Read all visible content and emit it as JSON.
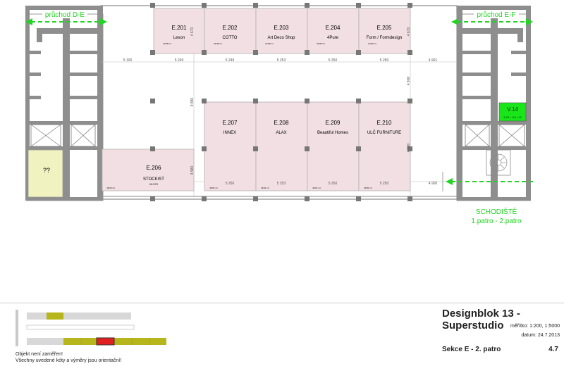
{
  "passages": {
    "left": "průchod D-E",
    "right": "průchod E-F"
  },
  "units_top": [
    {
      "code": "E.201",
      "name": "Lexon",
      "area": "23,98 m²"
    },
    {
      "code": "E.202",
      "name": "COTTO",
      "area": "23,98 m²"
    },
    {
      "code": "E.203",
      "name": "Art Deco Shop",
      "area": "23,98 m²"
    },
    {
      "code": "E.204",
      "name": "4Pure",
      "area": "23,80 m²"
    },
    {
      "code": "E.205",
      "name": "Form / Formdesign",
      "area": "23,80 m²"
    }
  ],
  "units_bottom": [
    {
      "code": "E.207",
      "name": "INNEX",
      "area": "49,81 m²"
    },
    {
      "code": "E.208",
      "name": "ALAX",
      "area": "49,61 m²"
    },
    {
      "code": "E.209",
      "name": "Beautiful Homes",
      "area": "49,61 m²"
    },
    {
      "code": "E.210",
      "name": "ULČ FURNITURE",
      "area": "49,81 m²"
    }
  ],
  "unit_206": {
    "code": "E.206",
    "name": "STOCKIST",
    "dim": "10.570",
    "area": "48,26 m²"
  },
  "unit_unknown": "??",
  "unit_v14": {
    "code": "V.14",
    "sub": "5,191 × 164, 4 18"
  },
  "dims_row1": [
    "5 100",
    "5 249",
    "5 249",
    "5 253",
    "5 250",
    "5 250",
    "4 901"
  ],
  "dims_row2": [
    "5 250",
    "5 253",
    "5 250",
    "5 250",
    "4 900"
  ],
  "dims_vertical": [
    "4 670",
    "4 670",
    "9 880",
    "4 900",
    "4 990",
    "4 580"
  ],
  "stair_caption": {
    "line1": "SCHODIŠTĚ",
    "line2": "1.patro - 2.patro"
  },
  "footer": {
    "title": "Designblok 13 -Superstudio",
    "scale": "měřítko: 1:200, 1:5000",
    "date": "datum: 24.7.2013",
    "section": "Sekce E - 2. patro",
    "page": "4.7",
    "note1": "Objekt není zaměřen!",
    "note2": "Všechny uvedené kóty a výměry jsou orientační!"
  },
  "colors": {
    "unit_fill": "#f2dfe3",
    "unknown_fill": "#f0f2c0",
    "v14_fill": "#19e619",
    "accent_green": "#23d323",
    "wall": "#8a8a8a",
    "key_olive": "#b6b61c",
    "key_red": "#e02020"
  }
}
